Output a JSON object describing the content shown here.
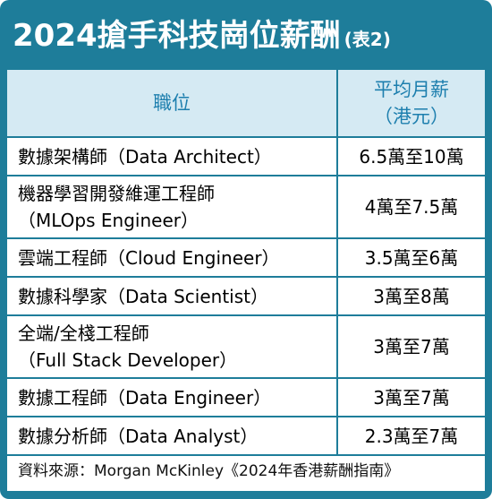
{
  "title": "2024搶手科技崗位薪酬",
  "title_tag": "(表2)",
  "table": {
    "header": {
      "position": [
        "職位"
      ],
      "salary": [
        "平均月薪",
        "（港元）"
      ]
    },
    "rows": [
      {
        "position": [
          "數據架構師（Data Architect）"
        ],
        "salary": "6.5萬至10萬"
      },
      {
        "position": [
          "機器學習開發維運工程師",
          "（MLOps Engineer）"
        ],
        "salary": "4萬至7.5萬"
      },
      {
        "position": [
          "雲端工程師（Cloud Engineer）"
        ],
        "salary": "3.5萬至6萬"
      },
      {
        "position": [
          "數據科學家（Data Scientist）"
        ],
        "salary": "3萬至8萬"
      },
      {
        "position": [
          "全端/全棧工程師",
          "（Full Stack Developer）"
        ],
        "salary": "3萬至7萬"
      },
      {
        "position": [
          "數據工程師（Data Engineer）"
        ],
        "salary": "3萬至7萬"
      },
      {
        "position": [
          "數據分析師（Data Analyst）"
        ],
        "salary": "2.3萬至7萬"
      }
    ]
  },
  "source": "資料來源：Morgan McKinley《2024年香港薪酬指南》"
}
